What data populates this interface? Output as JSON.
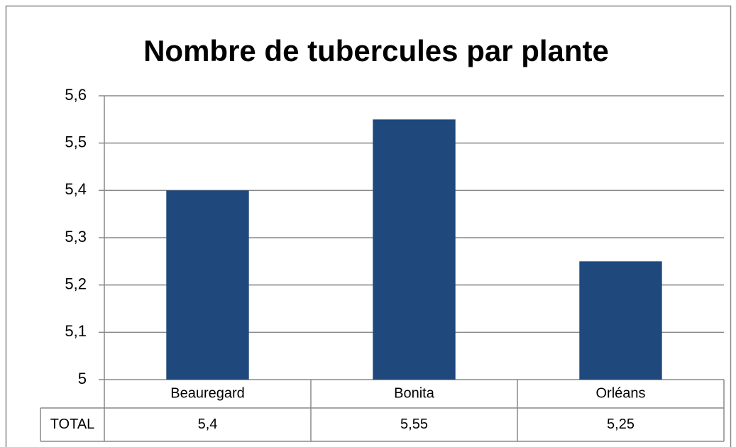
{
  "chart_data": {
    "type": "bar",
    "title": "Nombre de tubercules par plante",
    "categories": [
      "Beauregard",
      "Bonita",
      "Orléans"
    ],
    "series": [
      {
        "name": "TOTAL",
        "color": "#1f497d",
        "values": [
          5.4,
          5.55,
          5.25
        ],
        "value_labels": [
          "5,4",
          "5,55",
          "5,25"
        ]
      }
    ],
    "ylim": [
      5,
      5.6
    ],
    "yticks": [
      5,
      {
        "value": 5.1,
        "label": "5,1"
      },
      {
        "value": 5.2,
        "label": "5,2"
      },
      {
        "value": 5.3,
        "label": "5,3"
      },
      {
        "value": 5.4,
        "label": "5,4"
      },
      {
        "value": 5.5,
        "label": "5,5"
      },
      {
        "value": 5.6,
        "label": "5,6"
      }
    ],
    "grid": true
  }
}
